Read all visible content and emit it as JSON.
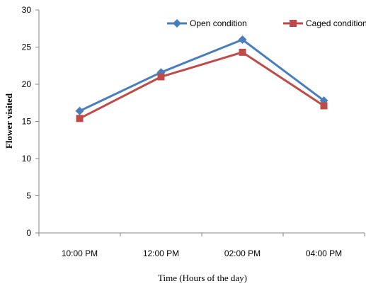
{
  "chart_data": {
    "type": "line",
    "xlabel": "Time (Hours of the day)",
    "ylabel": "Flower visited",
    "categories": [
      "10:00 PM",
      "12:00 PM",
      "02:00 PM",
      "04:00 PM"
    ],
    "ylim": [
      0,
      30
    ],
    "yticks": [
      0,
      5,
      10,
      15,
      20,
      25,
      30
    ],
    "grid": false,
    "legend_position": "top-right",
    "series": [
      {
        "name": "Open condition",
        "values": [
          16.4,
          21.6,
          26.0,
          17.8
        ],
        "color": "#4a7ebb",
        "marker": "diamond"
      },
      {
        "name": "Caged condition",
        "values": [
          15.4,
          21.0,
          24.3,
          17.1
        ],
        "color": "#be4b48",
        "marker": "square"
      }
    ]
  }
}
